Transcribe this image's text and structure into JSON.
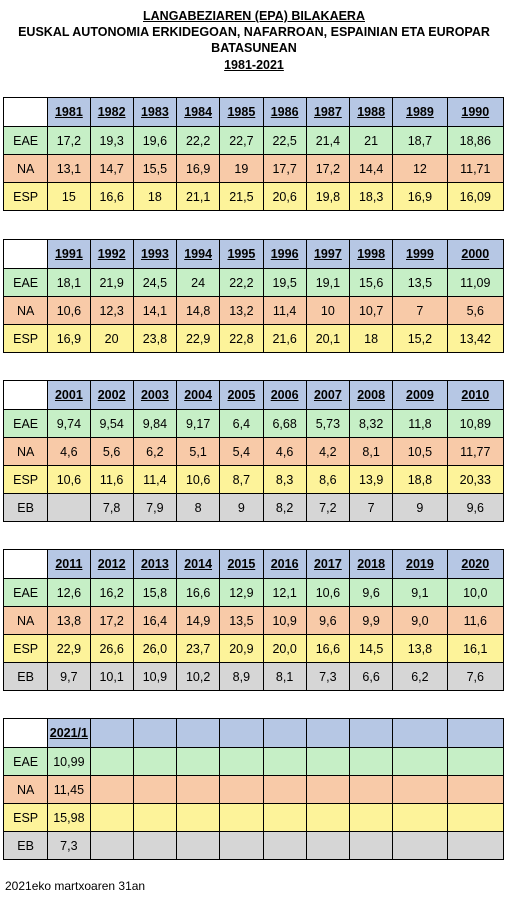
{
  "header": {
    "title": "LANGABEZIAREN (EPA) BILAKAERA",
    "subtitle_1": "EUSKAL AUTONOMIA ERKIDEGOAN, NAFARROAN, ESPAINIAN ETA EUROPAR",
    "subtitle_2": "BATASUNEAN",
    "period": "1981-2021"
  },
  "blocks": [
    {
      "years": [
        "1981",
        "1982",
        "1983",
        "1984",
        "1985",
        "1986",
        "1987",
        "1988",
        "1989",
        "1990"
      ],
      "rows": [
        {
          "label": "EAE",
          "values": [
            "17,2",
            "19,3",
            "19,6",
            "22,2",
            "22,7",
            "22,5",
            "21,4",
            "21",
            "18,7",
            "18,86"
          ]
        },
        {
          "label": "NA",
          "values": [
            "13,1",
            "14,7",
            "15,5",
            "16,9",
            "19",
            "17,7",
            "17,2",
            "14,4",
            "12",
            "11,71"
          ]
        },
        {
          "label": "ESP",
          "values": [
            "15",
            "16,6",
            "18",
            "21,1",
            "21,5",
            "20,6",
            "19,8",
            "18,3",
            "16,9",
            "16,09"
          ]
        }
      ]
    },
    {
      "years": [
        "1991",
        "1992",
        "1993",
        "1994",
        "1995",
        "1996",
        "1997",
        "1998",
        "1999",
        "2000"
      ],
      "rows": [
        {
          "label": "EAE",
          "values": [
            "18,1",
            "21,9",
            "24,5",
            "24",
            "22,2",
            "19,5",
            "19,1",
            "15,6",
            "13,5",
            "11,09"
          ]
        },
        {
          "label": "NA",
          "values": [
            "10,6",
            "12,3",
            "14,1",
            "14,8",
            "13,2",
            "11,4",
            "10",
            "10,7",
            "7",
            "5,6"
          ]
        },
        {
          "label": "ESP",
          "values": [
            "16,9",
            "20",
            "23,8",
            "22,9",
            "22,8",
            "21,6",
            "20,1",
            "18",
            "15,2",
            "13,42"
          ]
        }
      ]
    },
    {
      "years": [
        "2001",
        "2002",
        "2003",
        "2004",
        "2005",
        "2006",
        "2007",
        "2008",
        "2009",
        "2010"
      ],
      "rows": [
        {
          "label": "EAE",
          "values": [
            "9,74",
            "9,54",
            "9,84",
            "9,17",
            "6,4",
            "6,68",
            "5,73",
            "8,32",
            "11,8",
            "10,89"
          ]
        },
        {
          "label": "NA",
          "values": [
            "4,6",
            "5,6",
            "6,2",
            "5,1",
            "5,4",
            "4,6",
            "4,2",
            "8,1",
            "10,5",
            "11,77"
          ]
        },
        {
          "label": "ESP",
          "values": [
            "10,6",
            "11,6",
            "11,4",
            "10,6",
            "8,7",
            "8,3",
            "8,6",
            "13,9",
            "18,8",
            "20,33"
          ]
        },
        {
          "label": "EB",
          "values": [
            "",
            "7,8",
            "7,9",
            "8",
            "9",
            "8,2",
            "7,2",
            "7",
            "9",
            "9,6"
          ]
        }
      ]
    },
    {
      "years": [
        "2011",
        "2012",
        "2013",
        "2014",
        "2015",
        "2016",
        "2017",
        "2018",
        "2019",
        "2020"
      ],
      "rows": [
        {
          "label": "EAE",
          "values": [
            "12,6",
            "16,2",
            "15,8",
            "16,6",
            "12,9",
            "12,1",
            "10,6",
            "9,6",
            "9,1",
            "10,0"
          ]
        },
        {
          "label": "NA",
          "values": [
            "13,8",
            "17,2",
            "16,4",
            "14,9",
            "13,5",
            "10,9",
            "9,6",
            "9,9",
            "9,0",
            "11,6"
          ]
        },
        {
          "label": "ESP",
          "values": [
            "22,9",
            "26,6",
            "26,0",
            "23,7",
            "20,9",
            "20,0",
            "16,6",
            "14,5",
            "13,8",
            "16,1"
          ]
        },
        {
          "label": "EB",
          "values": [
            "9,7",
            "10,1",
            "10,9",
            "10,2",
            "8,9",
            "8,1",
            "7,3",
            "6,6",
            "6,2",
            "7,6"
          ]
        }
      ]
    },
    {
      "years": [
        "2021/1",
        "",
        "",
        "",
        "",
        "",
        "",
        "",
        "",
        ""
      ],
      "rows": [
        {
          "label": "EAE",
          "values": [
            "10,99",
            "",
            "",
            "",
            "",
            "",
            "",
            "",
            "",
            ""
          ]
        },
        {
          "label": "NA",
          "values": [
            "11,45",
            "",
            "",
            "",
            "",
            "",
            "",
            "",
            "",
            ""
          ]
        },
        {
          "label": "ESP",
          "values": [
            "15,98",
            "",
            "",
            "",
            "",
            "",
            "",
            "",
            "",
            ""
          ]
        },
        {
          "label": "EB",
          "values": [
            "7,3",
            "",
            "",
            "",
            "",
            "",
            "",
            "",
            "",
            ""
          ]
        }
      ]
    }
  ],
  "footer": {
    "note": "2021eko martxoaren 31an"
  }
}
